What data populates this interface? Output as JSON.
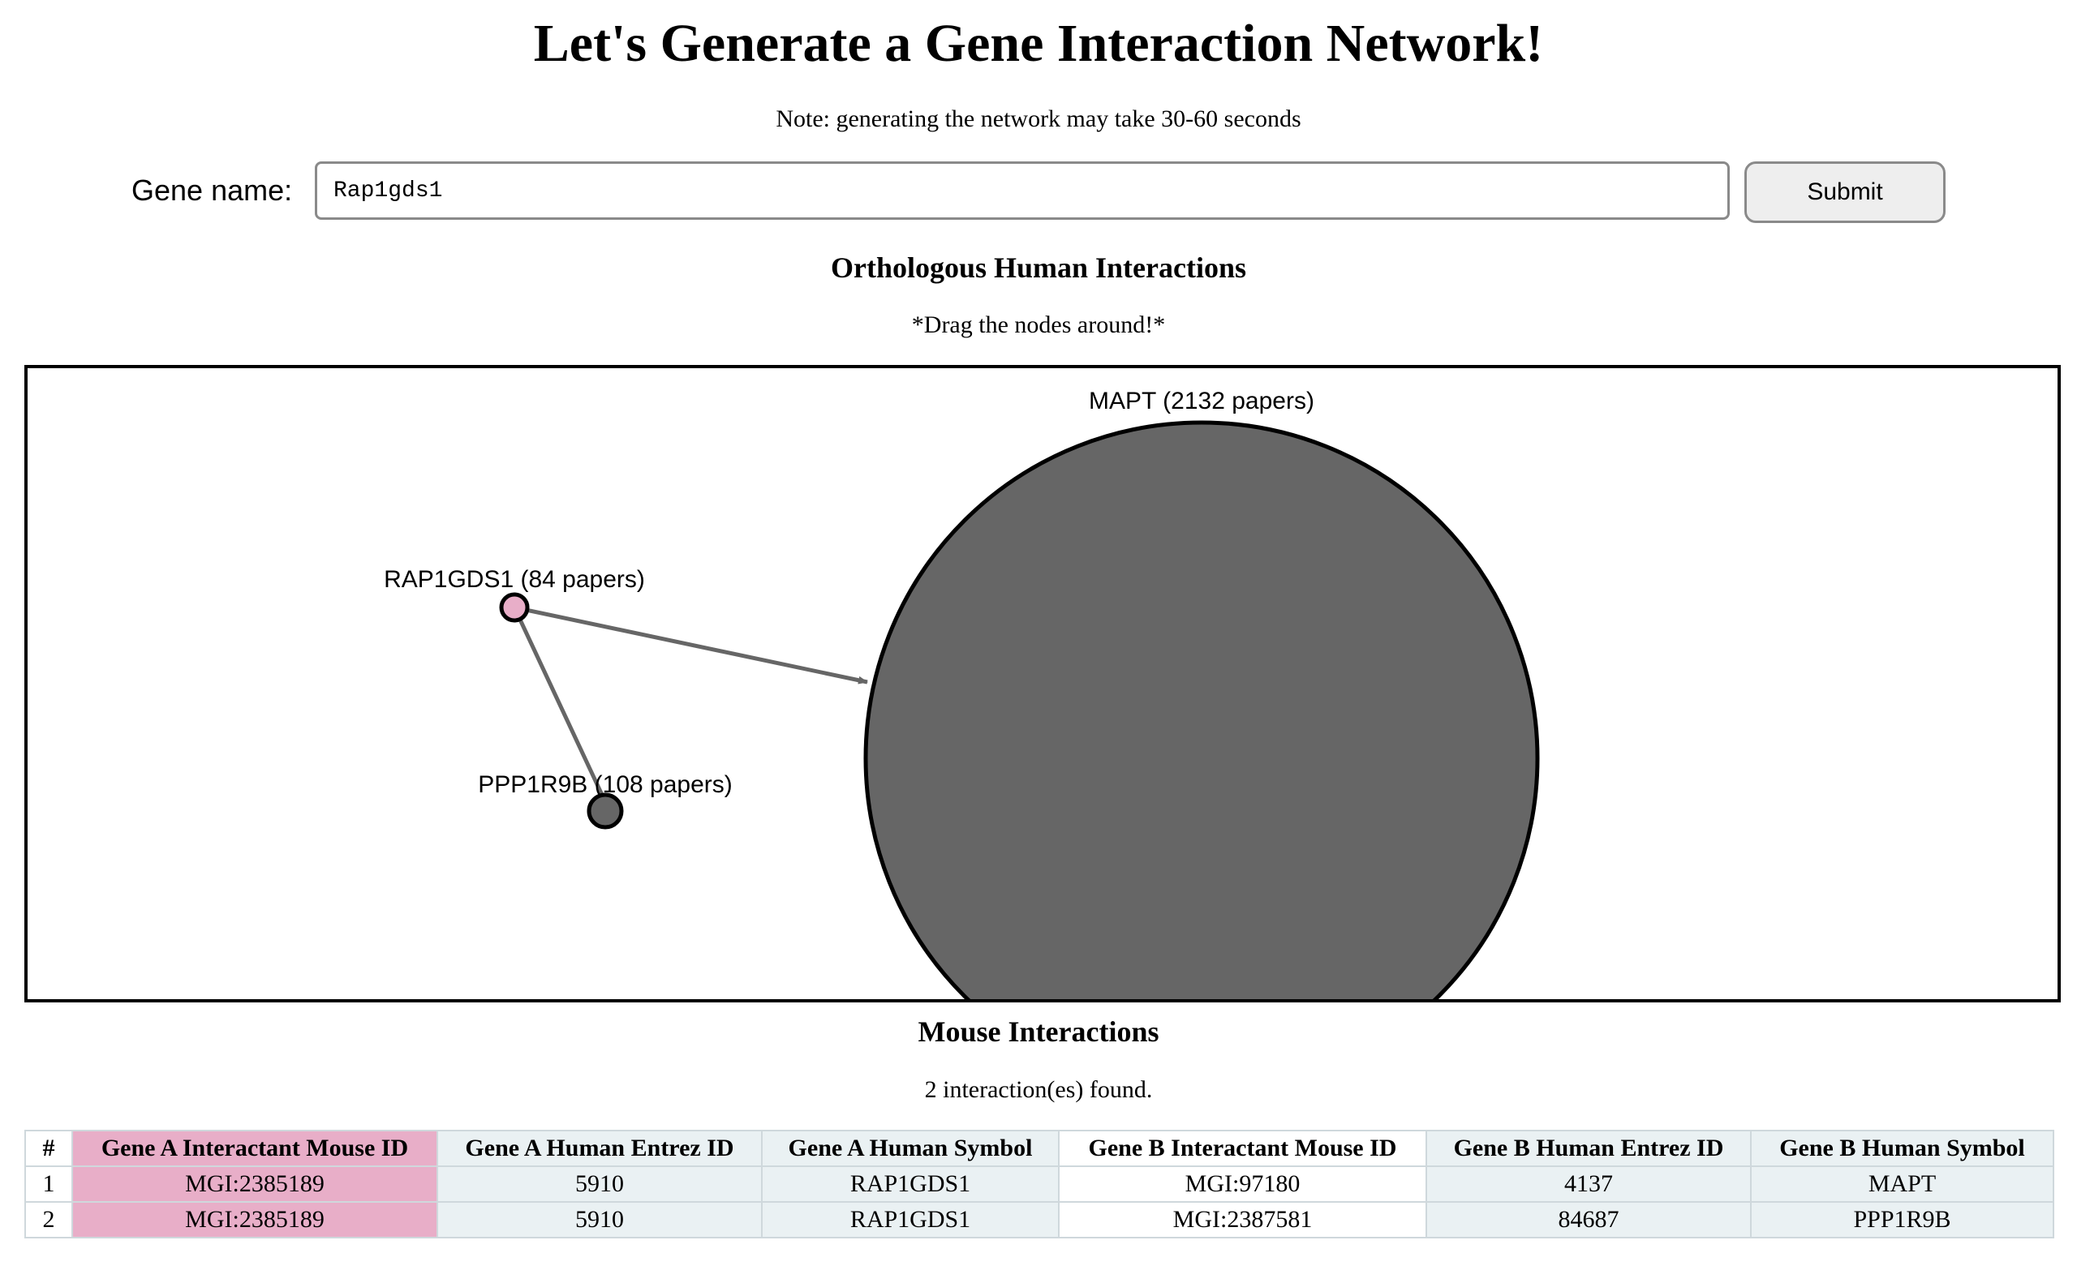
{
  "page": {
    "title": "Let's Generate a Gene Interaction Network!",
    "note": "Note: generating the network may take 30-60 seconds"
  },
  "form": {
    "label": "Gene name:",
    "value": "Rap1gds1",
    "submit_label": "Submit"
  },
  "network": {
    "heading": "Orthologous Human Interactions",
    "hint": "*Drag the nodes around!*",
    "nodes": [
      {
        "id": "RAP1GDS1",
        "label": "RAP1GDS1 (84 papers)",
        "papers": 84,
        "color": "#e8aec8",
        "query": true
      },
      {
        "id": "MAPT",
        "label": "MAPT (2132 papers)",
        "papers": 2132,
        "color": "#666666"
      },
      {
        "id": "PPP1R9B",
        "label": "PPP1R9B (108 papers)",
        "papers": 108,
        "color": "#666666"
      }
    ],
    "edges": [
      {
        "source": "RAP1GDS1",
        "target": "MAPT"
      },
      {
        "source": "RAP1GDS1",
        "target": "PPP1R9B"
      }
    ],
    "edge_color": "#666666"
  },
  "mouse": {
    "heading": "Mouse Interactions",
    "count_text": "2 interaction(es) found.",
    "columns": [
      "#",
      "Gene A Interactant Mouse ID",
      "Gene A Human Entrez ID",
      "Gene A Human Symbol",
      "Gene B Interactant Mouse ID",
      "Gene B Human Entrez ID",
      "Gene B Human Symbol"
    ],
    "rows": [
      [
        "1",
        "MGI:2385189",
        "5910",
        "RAP1GDS1",
        "MGI:97180",
        "4137",
        "MAPT"
      ],
      [
        "2",
        "MGI:2385189",
        "5910",
        "RAP1GDS1",
        "MGI:2387581",
        "84687",
        "PPP1R9B"
      ]
    ],
    "highlight_color": "#e8aec8"
  }
}
